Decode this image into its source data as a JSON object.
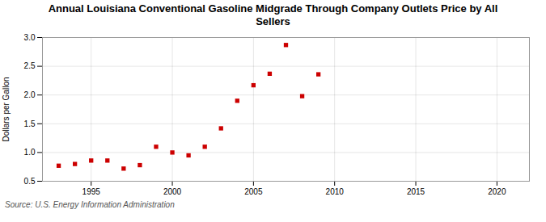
{
  "chart_data": {
    "type": "scatter",
    "title": "Annual Louisiana Conventional Gasoline Midgrade Through Company Outlets Price by All\nSellers",
    "ylabel": "Dollars per Gallon",
    "source": "Source: U.S. Energy Information Administration",
    "x": [
      1993,
      1994,
      1995,
      1996,
      1997,
      1998,
      1999,
      2000,
      2001,
      2002,
      2003,
      2004,
      2005,
      2006,
      2007,
      2008,
      2009,
      2010
    ],
    "values": [
      0.77,
      0.8,
      0.86,
      0.86,
      0.72,
      0.78,
      1.1,
      1.0,
      0.95,
      1.1,
      1.42,
      1.9,
      2.17,
      2.37,
      2.87,
      1.98,
      2.36,
      null
    ],
    "color": "#cc0000",
    "marker": "square",
    "xlim": [
      1992,
      2022
    ],
    "ylim": [
      0.5,
      3.0
    ],
    "xticks": [
      1995,
      2000,
      2005,
      2010,
      2015,
      2020
    ],
    "yticks": [
      0.5,
      {
        "value": 1.0,
        "label": "1.0"
      },
      1.5,
      {
        "value": 2.0,
        "label": "2.0"
      },
      2.5,
      {
        "value": 3.0,
        "label": "3.0"
      }
    ],
    "grid": true
  }
}
